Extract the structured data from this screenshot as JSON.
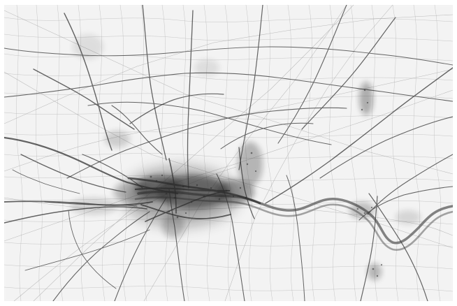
{
  "map": {
    "style": "grayscale density map",
    "colors": {
      "background": "#f3f3f3",
      "ink": "#101010",
      "frame": "#ffffff"
    }
  }
}
